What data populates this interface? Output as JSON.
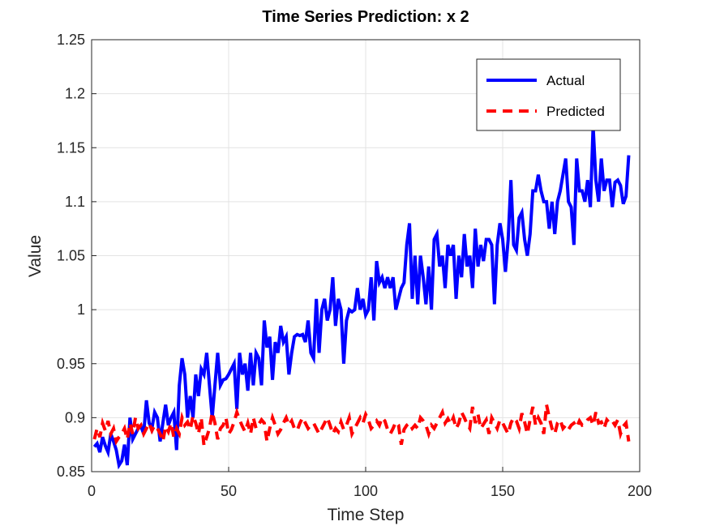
{
  "chart_data": {
    "type": "line",
    "title": "Time Series Prediction: x 2",
    "xlabel": "Time Step",
    "ylabel": "Value",
    "xlim": [
      0,
      200
    ],
    "xticks": [
      0,
      50,
      100,
      150,
      200
    ],
    "ylim": [
      0.85,
      1.25
    ],
    "yticks": [
      0.85,
      0.9,
      0.95,
      1,
      1.05,
      1.1,
      1.15,
      1.2,
      1.25
    ],
    "grid": true,
    "legend": "northeast",
    "x": [
      1,
      2,
      3,
      4,
      5,
      6,
      7,
      8,
      9,
      10,
      11,
      12,
      13,
      14,
      15,
      16,
      17,
      18,
      19,
      20,
      21,
      22,
      23,
      24,
      25,
      26,
      27,
      28,
      29,
      30,
      31,
      32,
      33,
      34,
      35,
      36,
      37,
      38,
      39,
      40,
      41,
      42,
      43,
      44,
      45,
      46,
      47,
      48,
      49,
      50,
      51,
      52,
      53,
      54,
      55,
      56,
      57,
      58,
      59,
      60,
      61,
      62,
      63,
      64,
      65,
      66,
      67,
      68,
      69,
      70,
      71,
      72,
      73,
      74,
      75,
      76,
      77,
      78,
      79,
      80,
      81,
      82,
      83,
      84,
      85,
      86,
      87,
      88,
      89,
      90,
      91,
      92,
      93,
      94,
      95,
      96,
      97,
      98,
      99,
      100,
      101,
      102,
      103,
      104,
      105,
      106,
      107,
      108,
      109,
      110,
      111,
      112,
      113,
      114,
      115,
      116,
      117,
      118,
      119,
      120,
      121,
      122,
      123,
      124,
      125,
      126,
      127,
      128,
      129,
      130,
      131,
      132,
      133,
      134,
      135,
      136,
      137,
      138,
      139,
      140,
      141,
      142,
      143,
      144,
      145,
      146,
      147,
      148,
      149,
      150,
      151,
      152,
      153,
      154,
      155,
      156,
      157,
      158,
      159,
      160,
      161,
      162,
      163,
      164,
      165,
      166,
      167,
      168,
      169,
      170,
      171,
      172,
      173,
      174,
      175,
      176,
      177,
      178,
      179,
      180,
      181,
      182,
      183,
      184,
      185,
      186,
      187,
      188,
      189,
      190,
      191,
      192,
      193,
      194,
      195,
      196
    ],
    "series": [
      {
        "name": "Actual",
        "color": "#0000ff",
        "style": "solid",
        "values": [
          0.873,
          0.876,
          0.868,
          0.882,
          0.874,
          0.868,
          0.885,
          0.878,
          0.87,
          0.856,
          0.86,
          0.875,
          0.856,
          0.9,
          0.88,
          0.885,
          0.89,
          0.892,
          0.885,
          0.916,
          0.895,
          0.89,
          0.905,
          0.9,
          0.878,
          0.895,
          0.912,
          0.893,
          0.9,
          0.905,
          0.87,
          0.93,
          0.955,
          0.94,
          0.9,
          0.92,
          0.9,
          0.94,
          0.92,
          0.945,
          0.94,
          0.96,
          0.93,
          0.9,
          0.93,
          0.96,
          0.93,
          0.935,
          0.936,
          0.94,
          0.945,
          0.95,
          0.908,
          0.96,
          0.94,
          0.95,
          0.925,
          0.96,
          0.93,
          0.96,
          0.955,
          0.93,
          0.99,
          0.965,
          0.975,
          0.935,
          0.97,
          0.96,
          0.985,
          0.97,
          0.975,
          0.94,
          0.96,
          0.975,
          0.977,
          0.976,
          0.977,
          0.97,
          0.99,
          0.96,
          0.955,
          1.01,
          0.96,
          1.0,
          1.01,
          0.99,
          1.0,
          1.03,
          0.985,
          1.01,
          1.0,
          0.95,
          0.99,
          1.0,
          0.998,
          1.0,
          1.02,
          1.0,
          1.01,
          0.995,
          1.0,
          1.03,
          0.99,
          1.045,
          1.025,
          1.03,
          1.02,
          1.03,
          1.02,
          1.03,
          1.0,
          1.01,
          1.02,
          1.025,
          1.06,
          1.08,
          1.01,
          1.05,
          1.005,
          1.05,
          1.03,
          1.005,
          1.04,
          1.0,
          1.065,
          1.07,
          1.04,
          1.05,
          1.02,
          1.06,
          1.05,
          1.06,
          1.01,
          1.05,
          1.03,
          1.07,
          1.04,
          1.05,
          1.02,
          1.075,
          1.04,
          1.06,
          1.045,
          1.065,
          1.065,
          1.06,
          1.005,
          1.06,
          1.08,
          1.065,
          1.035,
          1.065,
          1.12,
          1.06,
          1.055,
          1.085,
          1.09,
          1.065,
          1.05,
          1.07,
          1.11,
          1.11,
          1.125,
          1.11,
          1.1,
          1.1,
          1.075,
          1.1,
          1.07,
          1.1,
          1.11,
          1.125,
          1.14,
          1.1,
          1.095,
          1.06,
          1.14,
          1.11,
          1.11,
          1.1,
          1.12,
          1.095,
          1.17,
          1.12,
          1.1,
          1.14,
          1.11,
          1.12,
          1.12,
          1.095,
          1.118,
          1.12,
          1.115,
          1.098,
          1.105,
          1.143
        ]
      },
      {
        "name": "Predicted",
        "color": "#ff0000",
        "style": "dashed",
        "values": [
          0.88,
          0.89,
          0.882,
          0.895,
          0.888,
          0.897,
          0.885,
          0.89,
          0.878,
          0.882,
          0.885,
          0.89,
          0.88,
          0.895,
          0.885,
          0.9,
          0.89,
          0.893,
          0.885,
          0.89,
          0.895,
          0.888,
          0.893,
          0.89,
          0.885,
          0.878,
          0.892,
          0.887,
          0.895,
          0.882,
          0.89,
          0.885,
          0.9,
          0.893,
          0.896,
          0.889,
          0.902,
          0.895,
          0.885,
          0.9,
          0.874,
          0.882,
          0.89,
          0.905,
          0.895,
          0.88,
          0.89,
          0.893,
          0.9,
          0.885,
          0.889,
          0.896,
          0.905,
          0.898,
          0.892,
          0.887,
          0.895,
          0.885,
          0.9,
          0.89,
          0.894,
          0.898,
          0.895,
          0.878,
          0.89,
          0.9,
          0.893,
          0.885,
          0.889,
          0.895,
          0.9,
          0.893,
          0.897,
          0.89,
          0.888,
          0.895,
          0.9,
          0.895,
          0.89,
          0.893,
          0.895,
          0.89,
          0.885,
          0.89,
          0.895,
          0.9,
          0.893,
          0.885,
          0.89,
          0.887,
          0.896,
          0.889,
          0.893,
          0.9,
          0.885,
          0.89,
          0.895,
          0.9,
          0.895,
          0.903,
          0.898,
          0.89,
          0.893,
          0.897,
          0.893,
          0.9,
          0.897,
          0.889,
          0.885,
          0.89,
          0.896,
          0.893,
          0.875,
          0.889,
          0.893,
          0.895,
          0.89,
          0.893,
          0.89,
          0.9,
          0.897,
          0.893,
          0.885,
          0.893,
          0.89,
          0.895,
          0.9,
          0.905,
          0.895,
          0.899,
          0.894,
          0.9,
          0.89,
          0.895,
          0.905,
          0.9,
          0.894,
          0.89,
          0.91,
          0.895,
          0.903,
          0.89,
          0.894,
          0.898,
          0.885,
          0.9,
          0.895,
          0.89,
          0.898,
          0.895,
          0.89,
          0.885,
          0.895,
          0.9,
          0.897,
          0.89,
          0.904,
          0.896,
          0.885,
          0.898,
          0.91,
          0.893,
          0.9,
          0.895,
          0.885,
          0.912,
          0.9,
          0.89,
          0.885,
          0.895,
          0.898,
          0.89,
          0.893,
          0.889,
          0.893,
          0.895,
          0.891,
          0.897,
          0.893,
          0.894,
          0.898,
          0.9,
          0.893,
          0.905,
          0.895,
          0.896,
          0.89,
          0.898,
          0.895,
          0.897,
          0.893,
          0.898,
          0.885,
          0.892,
          0.895,
          0.878
        ]
      }
    ]
  }
}
